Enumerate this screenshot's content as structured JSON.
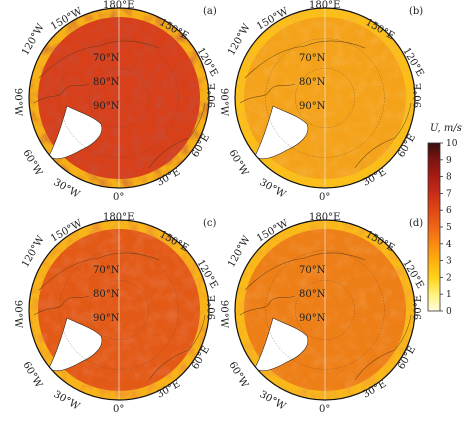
{
  "colorbar": {
    "title": "U, m/s",
    "ticks": [
      "0",
      "1",
      "2",
      "3",
      "4",
      "5",
      "6",
      "7",
      "8",
      "9",
      "10"
    ],
    "colors": [
      "#fffde0",
      "#fff27a",
      "#ffd21a",
      "#fdb010",
      "#f98a12",
      "#ef6515",
      "#e04716",
      "#c92d16",
      "#a81c14",
      "#7d1411",
      "#3a0e0d"
    ]
  },
  "panels": [
    {
      "label": "(a)",
      "lat_labels": [
        "70°N",
        "80°N",
        "90°N"
      ],
      "lon_labels": {
        "top": "180°E",
        "tl1": "150°W",
        "tl2": "120°W",
        "left": "90°W",
        "bl1": "60°W",
        "bl2": "30°W",
        "bottom": "0°",
        "br1": "30°E",
        "br2": "60°E",
        "right": "90°E",
        "tr2": "120°E",
        "tr1": "150°E"
      },
      "base_color": "#d8401a"
    },
    {
      "label": "(b)",
      "lat_labels": [
        "70°N",
        "80°N",
        "90°N"
      ],
      "lon_labels": {
        "top": "180°E",
        "tl1": "150°W",
        "tl2": "120°W",
        "left": "90°W",
        "bl1": "60°W",
        "bl2": "30°W",
        "bottom": "0°",
        "br1": "30°E",
        "br2": "60°E",
        "right": "90°E",
        "tr2": "120°E",
        "tr1": "150°E"
      },
      "base_color": "#f4a21a"
    },
    {
      "label": "(c)",
      "lat_labels": [
        "70°N",
        "80°N",
        "90°N"
      ],
      "lon_labels": {
        "top": "180°E",
        "tl1": "150°W",
        "tl2": "120°W",
        "left": "90°W",
        "bl1": "60°W",
        "bl2": "30°W",
        "bottom": "0°",
        "br1": "30°E",
        "br2": "60°E",
        "right": "90°E",
        "tr2": "120°E",
        "tr1": "150°E"
      },
      "base_color": "#e35a17"
    },
    {
      "label": "(d)",
      "lat_labels": [
        "70°N",
        "80°N",
        "90°N"
      ],
      "lon_labels": {
        "top": "180°E",
        "tl1": "150°W",
        "tl2": "120°W",
        "left": "90°W",
        "bl1": "60°W",
        "bl2": "30°W",
        "bottom": "0°",
        "br1": "30°E",
        "br2": "60°E",
        "right": "90°E",
        "tr2": "120°E",
        "tr1": "150°E"
      },
      "base_color": "#ee7e16"
    }
  ]
}
